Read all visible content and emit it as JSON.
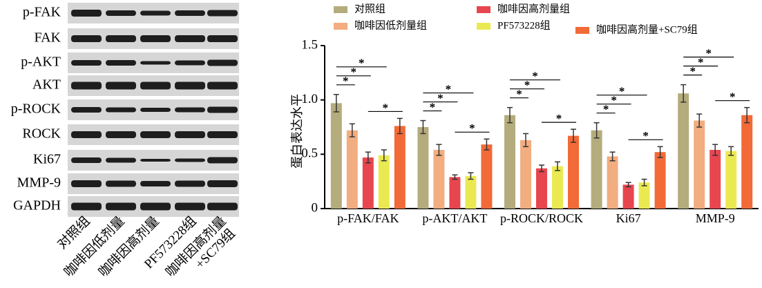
{
  "blot": {
    "row_labels": [
      "p-FAK",
      "FAK",
      "p-AKT",
      "AKT",
      "p-ROCK",
      "ROCK",
      "Ki67",
      "MMP-9",
      "GAPDH"
    ],
    "lane_labels": [
      "对照组",
      "咖啡因低剂量",
      "咖啡因高剂量",
      "PF573228组",
      "咖啡因高剂量",
      "+SC79组"
    ]
  },
  "chart_data": {
    "type": "bar",
    "ylabel": "蛋白表达水平",
    "categories": [
      "p-FAK/FAK",
      "p-AKT/AKT",
      "p-ROCK/ROCK",
      "Ki67",
      "MMP-9"
    ],
    "series": [
      {
        "name": "对照组",
        "color": "#b5ac7d",
        "values": [
          0.97,
          0.75,
          0.86,
          0.72,
          1.06
        ],
        "errors": [
          0.08,
          0.06,
          0.07,
          0.07,
          0.08
        ]
      },
      {
        "name": "咖啡因低剂量组",
        "color": "#f2ad80",
        "values": [
          0.72,
          0.54,
          0.63,
          0.48,
          0.81
        ],
        "errors": [
          0.06,
          0.05,
          0.06,
          0.04,
          0.06
        ]
      },
      {
        "name": "咖啡因高剂量组",
        "color": "#e8464f",
        "values": [
          0.47,
          0.29,
          0.37,
          0.22,
          0.54
        ],
        "errors": [
          0.05,
          0.02,
          0.03,
          0.02,
          0.05
        ]
      },
      {
        "name": "PF573228组",
        "color": "#ebe952",
        "values": [
          0.49,
          0.3,
          0.39,
          0.24,
          0.53
        ],
        "errors": [
          0.05,
          0.03,
          0.04,
          0.03,
          0.04
        ]
      },
      {
        "name": "咖啡因高剂量+SC79组",
        "color": "#f26a37",
        "values": [
          0.76,
          0.59,
          0.67,
          0.52,
          0.86
        ],
        "errors": [
          0.07,
          0.05,
          0.06,
          0.05,
          0.07
        ]
      }
    ],
    "ylim": [
      0,
      1.5
    ],
    "yticks": [
      0,
      0.5,
      {
        "value": 1,
        "label": "1.0"
      },
      1.5
    ],
    "significance": [
      {
        "text": "*",
        "from": 0,
        "to": 1
      },
      {
        "text": "*",
        "from": 0,
        "to": 2
      },
      {
        "text": "*",
        "from": 0,
        "to": 3
      },
      {
        "text": "*",
        "from": 2,
        "to": 4
      }
    ]
  }
}
